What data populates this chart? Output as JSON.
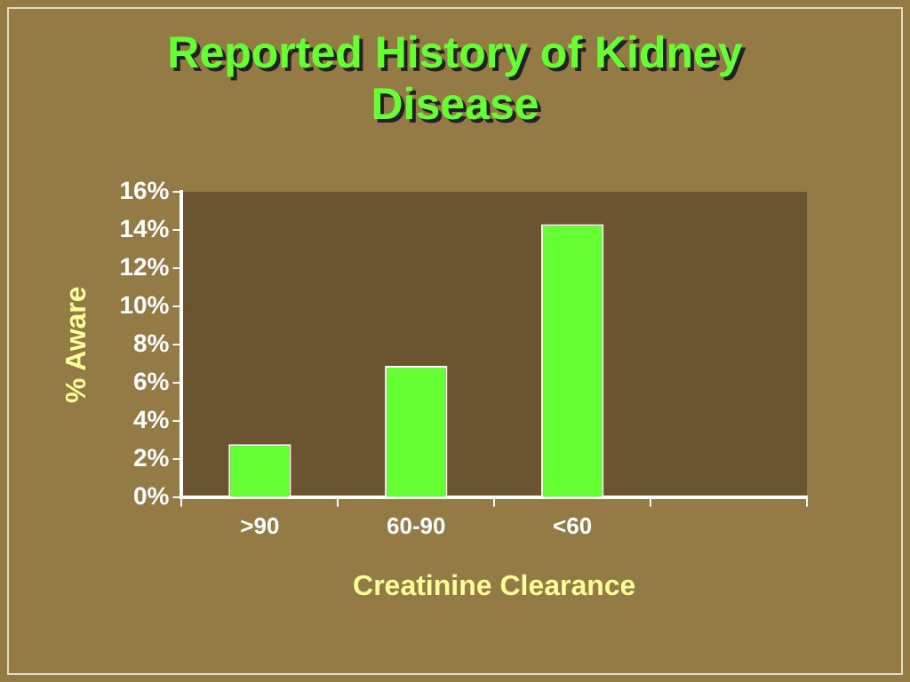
{
  "chart_data": {
    "type": "bar",
    "title": "Reported History of Kidney Disease",
    "xlabel": "Creatinine Clearance",
    "ylabel": "% Aware",
    "categories": [
      ">90",
      "60-90",
      "<60",
      null
    ],
    "values": [
      2.8,
      6.9,
      14.3,
      null
    ],
    "color": "#66ff33",
    "ylim": [
      0,
      16
    ],
    "yticks": [
      {
        "value": 0,
        "label": "0%"
      },
      {
        "value": 2,
        "label": "2%"
      },
      {
        "value": 4,
        "label": "4%"
      },
      {
        "value": 6,
        "label": "6%"
      },
      {
        "value": 8,
        "label": "8%"
      },
      {
        "value": 10,
        "label": "10%"
      },
      {
        "value": 12,
        "label": "12%"
      },
      {
        "value": 14,
        "label": "14%"
      },
      {
        "value": 16,
        "label": "16%"
      }
    ],
    "grid": false,
    "legend": false
  }
}
